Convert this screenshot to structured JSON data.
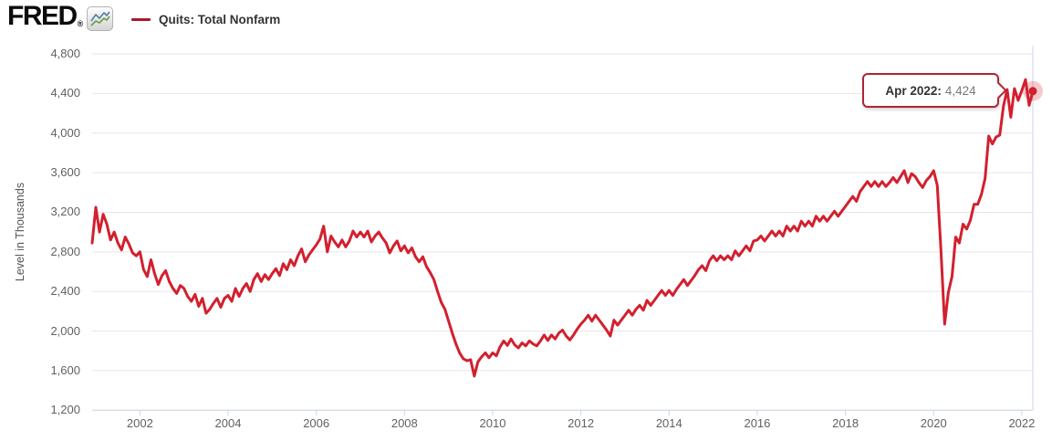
{
  "header": {
    "logo_text": "FRED",
    "logo_reg": "®",
    "logo_icon": "sparkline-chart-icon"
  },
  "legend": {
    "label": "Quits: Total Nonfarm",
    "swatch_color": "#a6192e"
  },
  "tooltip": {
    "label": "Apr 2022:",
    "value": "4,424"
  },
  "colors": {
    "line": "#d2202e",
    "halo": "rgba(210,32,46,0.24)",
    "grid": "#e6e6e6",
    "axis": "#ccd6eb",
    "tooltip_border": "#b02437",
    "icon_line_blue": "#5b80a8",
    "icon_line_green": "#66a04c"
  },
  "chart_data": {
    "type": "line",
    "title": "Quits: Total Nonfarm",
    "ylabel": "Level in Thousands",
    "units": "Thousands",
    "frequency": "monthly",
    "start": "2000-12",
    "end": "2022-04",
    "ylim": [
      1200,
      4800
    ],
    "ytick_step": 400,
    "ytick_labels": [
      "4,800",
      "4,400",
      "4,000",
      "3,600",
      "3,200",
      "2,800",
      "2,400",
      "2,000",
      "1,600",
      "1,200"
    ],
    "xtick_years": [
      2002,
      2004,
      2006,
      2008,
      2010,
      2012,
      2014,
      2016,
      2018,
      2020,
      2022
    ],
    "grid": "horizontal",
    "legend_position": "top-left",
    "last_point": {
      "date": "Apr 2022",
      "value": 4424
    },
    "values": [
      2890,
      3250,
      3000,
      3180,
      3080,
      2920,
      3000,
      2890,
      2820,
      2950,
      2880,
      2790,
      2760,
      2800,
      2620,
      2550,
      2720,
      2580,
      2470,
      2560,
      2610,
      2500,
      2430,
      2380,
      2460,
      2430,
      2350,
      2300,
      2370,
      2250,
      2330,
      2180,
      2220,
      2280,
      2330,
      2240,
      2330,
      2360,
      2300,
      2430,
      2350,
      2430,
      2480,
      2400,
      2520,
      2580,
      2500,
      2570,
      2520,
      2580,
      2630,
      2560,
      2680,
      2620,
      2720,
      2660,
      2760,
      2830,
      2700,
      2770,
      2820,
      2870,
      2930,
      3060,
      2800,
      2960,
      2900,
      2850,
      2920,
      2850,
      2910,
      3010,
      2950,
      3000,
      2950,
      3010,
      2900,
      2960,
      3000,
      2940,
      2890,
      2790,
      2860,
      2910,
      2810,
      2860,
      2790,
      2840,
      2750,
      2700,
      2750,
      2650,
      2590,
      2520,
      2400,
      2290,
      2220,
      2100,
      1980,
      1870,
      1780,
      1720,
      1700,
      1710,
      1545,
      1690,
      1740,
      1780,
      1730,
      1780,
      1750,
      1840,
      1900,
      1855,
      1920,
      1860,
      1830,
      1880,
      1850,
      1900,
      1870,
      1850,
      1900,
      1960,
      1905,
      1960,
      1920,
      1980,
      2010,
      1950,
      1910,
      1960,
      2020,
      2070,
      2110,
      2160,
      2100,
      2160,
      2110,
      2060,
      2010,
      1950,
      2110,
      2060,
      2110,
      2160,
      2210,
      2160,
      2220,
      2260,
      2210,
      2310,
      2260,
      2310,
      2360,
      2410,
      2360,
      2410,
      2360,
      2420,
      2470,
      2520,
      2460,
      2510,
      2560,
      2620,
      2660,
      2610,
      2710,
      2760,
      2710,
      2760,
      2720,
      2760,
      2720,
      2810,
      2760,
      2810,
      2860,
      2810,
      2910,
      2920,
      2960,
      2910,
      2960,
      3010,
      2960,
      3010,
      2960,
      3060,
      3010,
      3060,
      3010,
      3110,
      3060,
      3110,
      3060,
      3160,
      3110,
      3160,
      3110,
      3160,
      3210,
      3160,
      3210,
      3260,
      3310,
      3360,
      3310,
      3410,
      3460,
      3510,
      3460,
      3510,
      3460,
      3510,
      3460,
      3500,
      3550,
      3500,
      3560,
      3620,
      3500,
      3590,
      3560,
      3500,
      3450,
      3520,
      3560,
      3620,
      3470,
      2810,
      2070,
      2390,
      2550,
      2950,
      2890,
      3080,
      3030,
      3120,
      3280,
      3280,
      3380,
      3540,
      3970,
      3890,
      3960,
      3980,
      4270,
      4440,
      4160,
      4450,
      4330,
      4430,
      4540,
      4280,
      4424
    ]
  }
}
